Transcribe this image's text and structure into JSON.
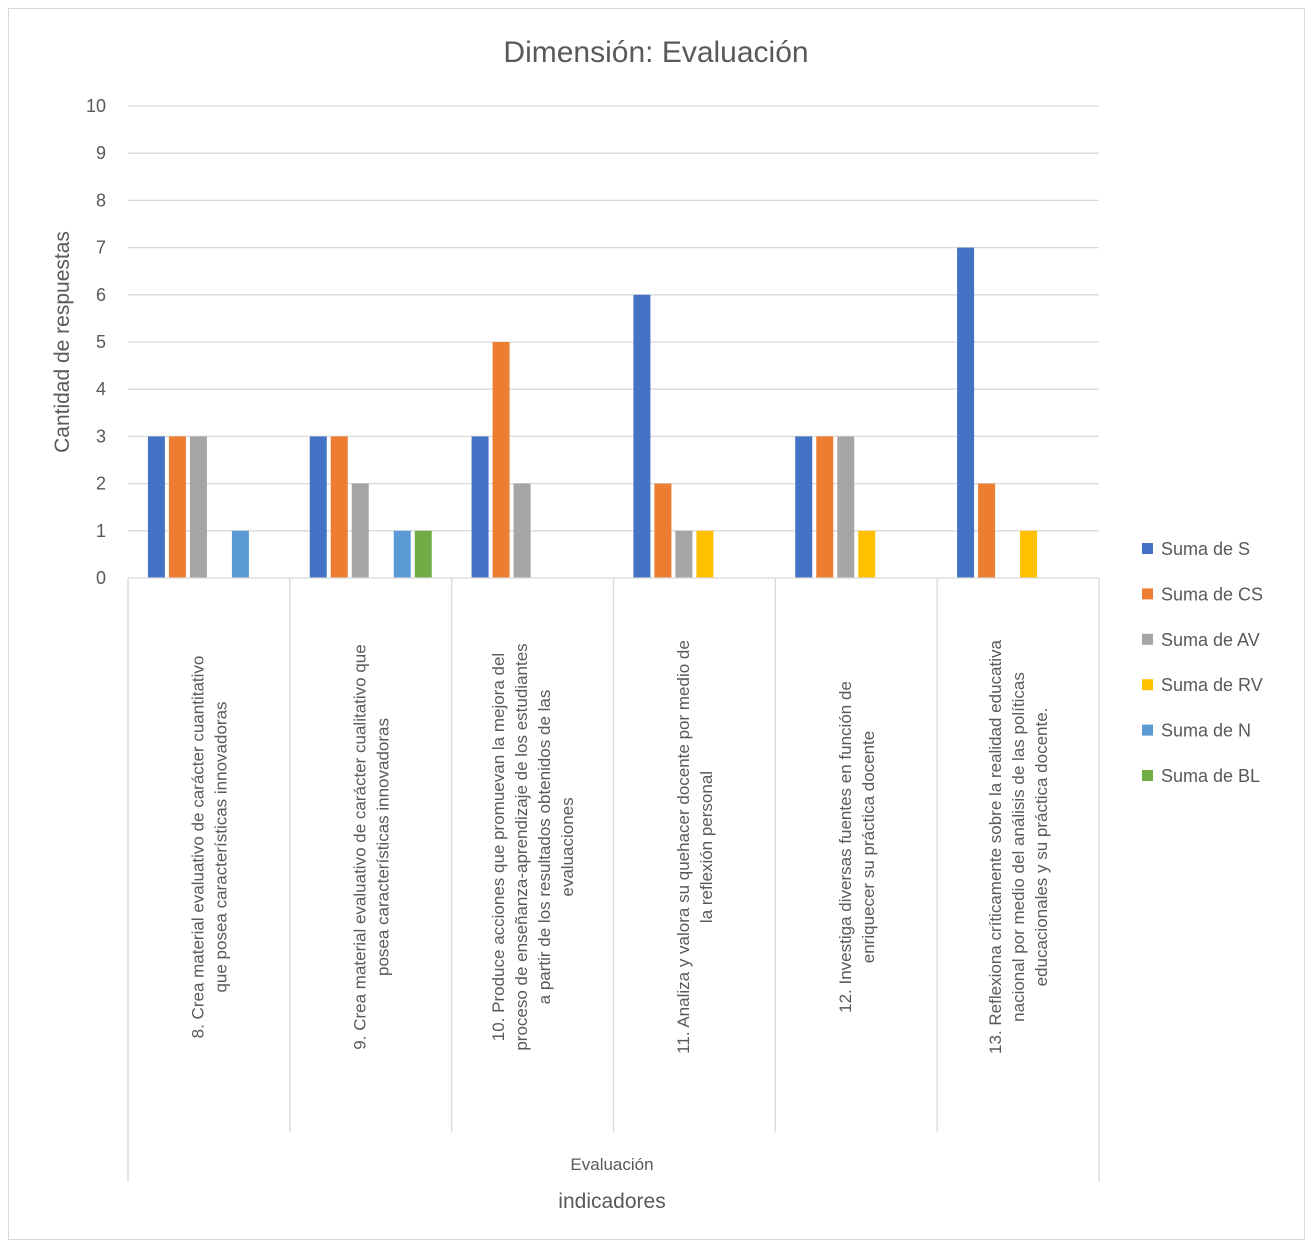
{
  "chart_data": {
    "type": "bar",
    "title": "Dimensión: Evaluación",
    "ylabel": "Cantidad de respuestas",
    "xlabel": "indicadores",
    "group_label": "Evaluación",
    "ylim": [
      0,
      10
    ],
    "yticks": [
      "0",
      "1",
      "2",
      "3",
      "4",
      "5",
      "6",
      "7",
      "8",
      "9",
      "10"
    ],
    "grid": true,
    "legend_position": "right",
    "categories": [
      [
        "8. Crea material evaluativo de carácter cuantitativo",
        "que posea características innovadoras"
      ],
      [
        "9. Crea material evaluativo de carácter cualitativo que",
        "posea características innovadoras"
      ],
      [
        "10. Produce acciones que promuevan la mejora del",
        "proceso de enseñanza-aprendizaje de los estudiantes",
        "a partir de los resultados obtenidos de las",
        "evaluaciones"
      ],
      [
        "11. Analiza y valora su quehacer docente por medio de",
        "la reflexión personal"
      ],
      [
        "12. Investiga diversas fuentes en función de",
        "enriquecer su práctica docente"
      ],
      [
        "13. Reflexiona críticamente sobre la realidad educativa",
        "nacional por medio del análisis de las políticas",
        "educacionales y su práctica docente."
      ]
    ],
    "series": [
      {
        "name": "Suma de S",
        "color": "#4472C4",
        "values": [
          3,
          3,
          3,
          6,
          3,
          7
        ]
      },
      {
        "name": "Suma de CS",
        "color": "#ED7D31",
        "values": [
          3,
          3,
          5,
          2,
          3,
          2
        ]
      },
      {
        "name": "Suma de AV",
        "color": "#A5A5A5",
        "values": [
          3,
          2,
          2,
          1,
          3,
          null
        ]
      },
      {
        "name": "Suma de RV",
        "color": "#FFC000",
        "values": [
          null,
          null,
          null,
          1,
          1,
          1
        ]
      },
      {
        "name": "Suma de N",
        "color": "#5B9BD5",
        "values": [
          1,
          1,
          null,
          null,
          null,
          null
        ]
      },
      {
        "name": "Suma de BL",
        "color": "#70AD47",
        "values": [
          null,
          1,
          null,
          null,
          null,
          null
        ]
      }
    ]
  }
}
